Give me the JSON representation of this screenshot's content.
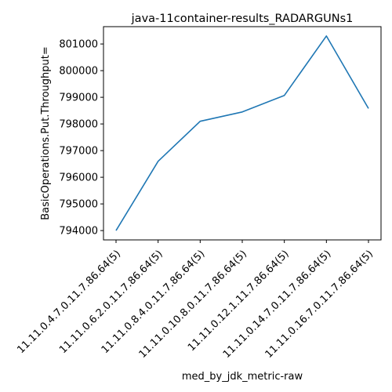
{
  "chart_data": {
    "type": "line",
    "title": "java-11container-results_RADARGUNs1",
    "xlabel": "med_by_jdk_metric-raw",
    "ylabel": "BasicOperations.Put.Throughput=",
    "categories": [
      "11.11.0.4.7.0.11.7.86.64(5)",
      "11.11.0.6.2.0.11.7.86.64(5)",
      "11.11.0.8.4.0.11.7.86.64(5)",
      "11.11.0.10.8.0.11.7.86.64(5)",
      "11.11.0.12.1.11.7.86.64(5)",
      "11.11.0.14.7.0.11.7.86.64(5)",
      "11.11.0.16.7.0.11.7.86.64(5)"
    ],
    "series": [
      {
        "values": [
          794000,
          796600,
          798100,
          798450,
          799070,
          801300,
          798580
        ],
        "color": "#1f77b4"
      }
    ],
    "y_ticks": [
      794000,
      795000,
      796000,
      797000,
      798000,
      799000,
      800000,
      801000
    ],
    "ylim": [
      793650,
      801650
    ],
    "grid": false,
    "legend": "none"
  }
}
